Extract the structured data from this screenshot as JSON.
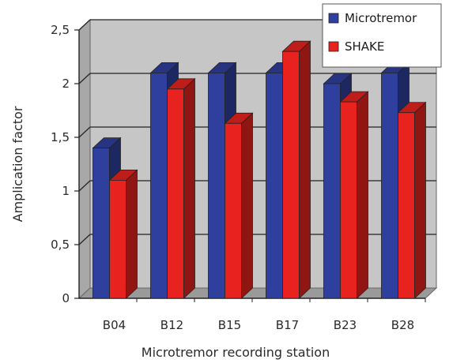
{
  "chart_data": {
    "type": "bar",
    "style": "3d-clustered-column",
    "categories": [
      "B04",
      "B12",
      "B15",
      "B17",
      "B23",
      "B28"
    ],
    "series": [
      {
        "name": "Microtremor",
        "values": [
          1.4,
          2.1,
          2.1,
          2.1,
          2.0,
          2.1
        ],
        "color": "#2f3f9e"
      },
      {
        "name": "SHAKE",
        "values": [
          1.1,
          1.95,
          1.63,
          2.3,
          1.83,
          1.73
        ],
        "color": "#e8231f"
      }
    ],
    "xlabel": "Microtremor recording station",
    "ylabel": "Amplication factor",
    "ylim": [
      0,
      2.5
    ],
    "yticks": [
      "0",
      "0,5",
      "1",
      "1,5",
      "2",
      "2,5"
    ],
    "grid": true,
    "legend_position": "top-right",
    "wall_color": "#c6c6c6"
  }
}
